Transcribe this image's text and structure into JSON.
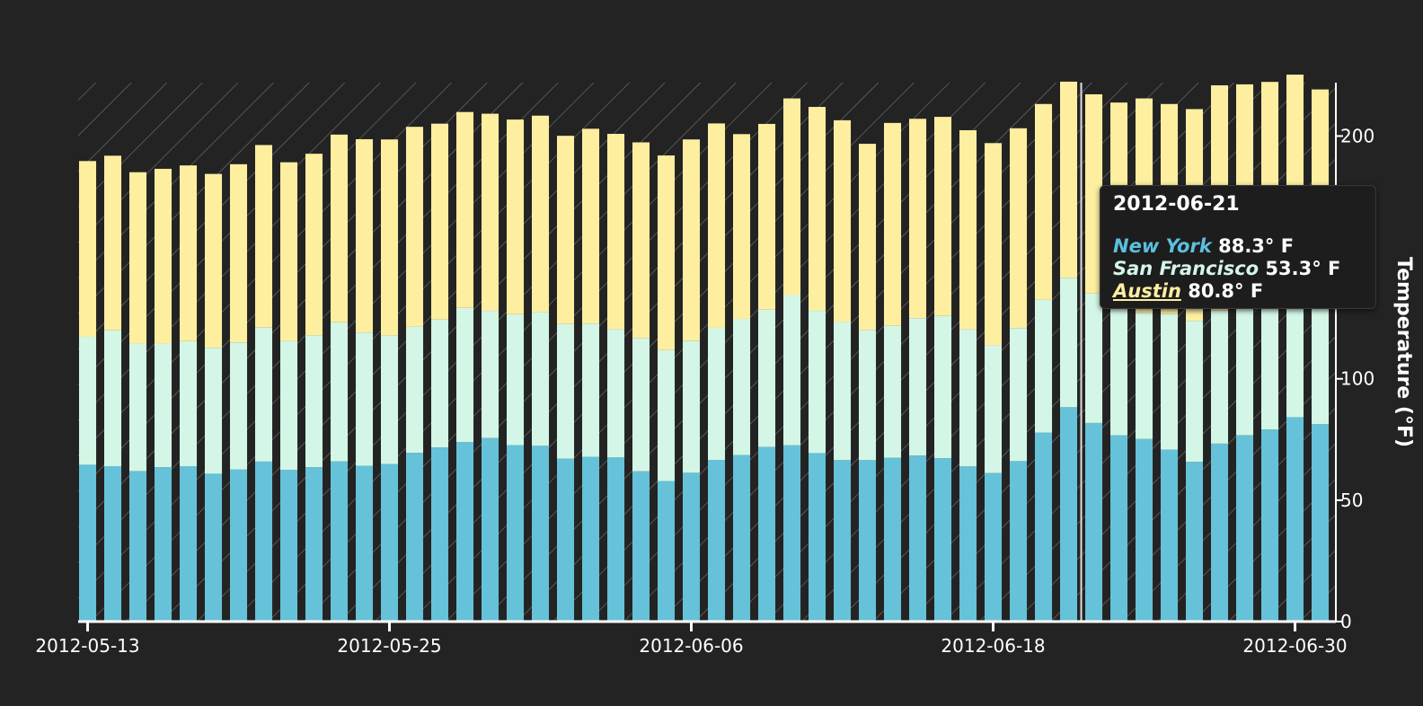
{
  "chart_data": {
    "type": "bar",
    "stacked": true,
    "x": [
      "2012-05-13",
      "2012-05-14",
      "2012-05-15",
      "2012-05-16",
      "2012-05-17",
      "2012-05-18",
      "2012-05-19",
      "2012-05-20",
      "2012-05-21",
      "2012-05-22",
      "2012-05-23",
      "2012-05-24",
      "2012-05-25",
      "2012-05-26",
      "2012-05-27",
      "2012-05-28",
      "2012-05-29",
      "2012-05-30",
      "2012-05-31",
      "2012-06-01",
      "2012-06-02",
      "2012-06-03",
      "2012-06-04",
      "2012-06-05",
      "2012-06-06",
      "2012-06-07",
      "2012-06-08",
      "2012-06-09",
      "2012-06-10",
      "2012-06-11",
      "2012-06-12",
      "2012-06-13",
      "2012-06-14",
      "2012-06-15",
      "2012-06-16",
      "2012-06-17",
      "2012-06-18",
      "2012-06-19",
      "2012-06-20",
      "2012-06-21",
      "2012-06-22",
      "2012-06-23",
      "2012-06-24",
      "2012-06-25",
      "2012-06-26",
      "2012-06-27",
      "2012-06-28",
      "2012-06-29",
      "2012-06-30",
      "2012-07-01"
    ],
    "series": [
      {
        "name": "New York",
        "color": "#65c2d8",
        "values": [
          64.6,
          64.0,
          62.0,
          63.6,
          64.0,
          60.9,
          62.6,
          65.9,
          62.5,
          63.6,
          66.0,
          64.2,
          64.9,
          69.5,
          71.7,
          73.9,
          75.6,
          72.7,
          72.4,
          67.1,
          67.9,
          67.6,
          61.9,
          57.9,
          61.3,
          66.6,
          68.6,
          71.9,
          72.6,
          69.4,
          66.5,
          66.5,
          67.5,
          68.4,
          67.3,
          63.9,
          61.2,
          66.1,
          77.8,
          88.3,
          81.8,
          76.7,
          75.2,
          70.8,
          65.8,
          73.3,
          76.8,
          79.1,
          84.2,
          81.4
        ]
      },
      {
        "name": "San Francisco",
        "color": "#d3f6e6",
        "values": [
          52.7,
          56.0,
          52.5,
          50.9,
          51.5,
          51.9,
          52.4,
          55.2,
          53.1,
          54.3,
          57.3,
          54.9,
          52.9,
          51.9,
          52.7,
          55.3,
          52.4,
          53.9,
          55.1,
          55.5,
          54.9,
          52.8,
          54.9,
          53.9,
          54.4,
          54.4,
          56.1,
          56.6,
          61.9,
          58.6,
          56.9,
          53.7,
          54.3,
          56.6,
          58.6,
          56.5,
          52.6,
          54.8,
          54.8,
          53.3,
          53.3,
          53.5,
          52.0,
          55.8,
          58.1,
          54.8,
          56.3,
          53.8,
          54.3,
          52.8
        ]
      },
      {
        "name": "Austin",
        "color": "#fdeea0",
        "values": [
          72.4,
          71.9,
          70.6,
          72.0,
          72.4,
          71.6,
          73.4,
          75.2,
          73.6,
          74.8,
          77.3,
          79.6,
          80.8,
          82.4,
          80.7,
          80.7,
          81.2,
          80.2,
          80.9,
          77.5,
          80.2,
          80.5,
          80.6,
          80.2,
          82.9,
          84.2,
          76.1,
          76.5,
          81.0,
          84.0,
          83.1,
          76.6,
          83.6,
          82.1,
          82.0,
          82.0,
          83.3,
          82.3,
          80.6,
          80.8,
          82.1,
          83.6,
          88.3,
          86.6,
          87.2,
          92.8,
          88.2,
          89.4,
          86.8,
          85.0
        ]
      }
    ],
    "xticks": [
      "2012-05-13",
      "2012-05-25",
      "2012-06-06",
      "2012-06-18",
      "2012-06-30"
    ],
    "yticks": [
      0,
      50,
      100,
      200
    ],
    "ylim": [
      0,
      222
    ],
    "ylabel": "Temperature (°F)",
    "grid": false,
    "y_axis_side": "right",
    "hover_date": "2012-06-21"
  },
  "tooltip": {
    "date": "2012-06-21",
    "rows": [
      {
        "name": "New York",
        "value": "88.3° F",
        "color": "#5bc0de"
      },
      {
        "name": "San Francisco",
        "value": "53.3° F",
        "color": "#d3f6e6"
      },
      {
        "name": "Austin",
        "value": "80.8° F",
        "color": "#fdeea0"
      }
    ]
  }
}
